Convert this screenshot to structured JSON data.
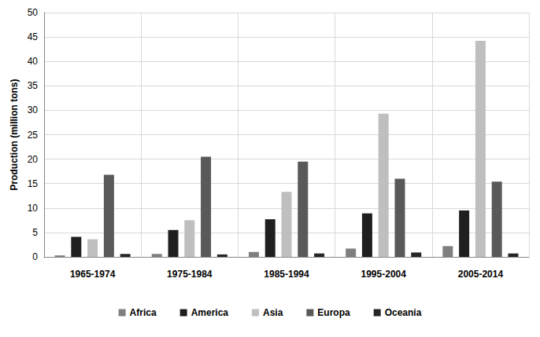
{
  "chart_data": {
    "type": "bar",
    "y_label": "Production (million tons)",
    "categories": [
      "1965-1974",
      "1975-1984",
      "1985-1994",
      "1995-2004",
      "2005-2014"
    ],
    "series": [
      {
        "name": "Africa",
        "color": "#7f7f7f",
        "values": [
          0.3,
          0.6,
          1.0,
          1.7,
          2.2
        ]
      },
      {
        "name": "America",
        "color": "#1f1f1f",
        "values": [
          4.1,
          5.5,
          7.7,
          8.9,
          9.5
        ]
      },
      {
        "name": "Asia",
        "color": "#bfbfbf",
        "values": [
          3.6,
          7.5,
          13.3,
          29.3,
          44.2
        ]
      },
      {
        "name": "Europa",
        "color": "#595959",
        "values": [
          16.8,
          20.5,
          19.5,
          16.0,
          15.4
        ]
      },
      {
        "name": "Oceania",
        "color": "#262626",
        "values": [
          0.6,
          0.5,
          0.7,
          0.9,
          0.7
        ]
      }
    ],
    "ylim": [
      0,
      50
    ],
    "yticks": [
      0,
      5,
      10,
      15,
      20,
      25,
      30,
      35,
      40,
      45,
      50
    ],
    "grid": true,
    "legend": "bottom"
  }
}
